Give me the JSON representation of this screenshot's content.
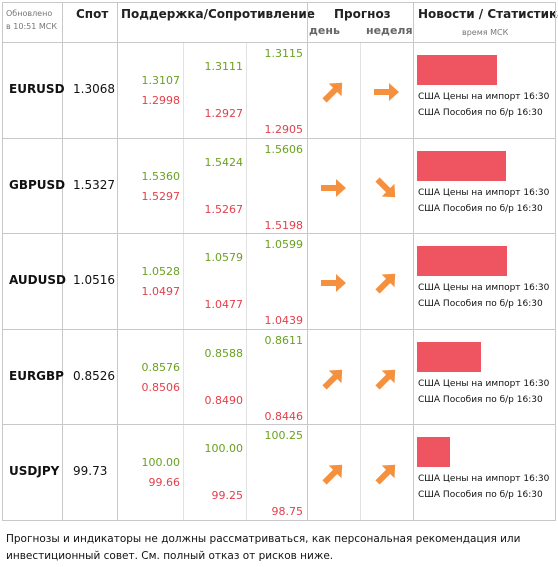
{
  "header": {
    "updated_line1": "Обновлено",
    "updated_line2": "в 10:51 МСК",
    "spot": "Спот",
    "levels": "Поддержка/Сопротивление",
    "forecast": "Прогноз",
    "day": "день",
    "week": "неделя",
    "news": "Новости / Статистика",
    "news_time": "время МСК"
  },
  "rows": [
    {
      "pair": "EURUSD",
      "spot": "1.3068",
      "levels": [
        [
          "1.3107",
          "1.2998"
        ],
        [
          "1.3111",
          "1.2927"
        ],
        [
          "1.3115",
          "1.2905"
        ]
      ],
      "news": [
        "США Цены на импорт 16:30",
        "США Пособия по б/р 16:30"
      ]
    },
    {
      "pair": "GBPUSD",
      "spot": "1.5327",
      "levels": [
        [
          "1.5360",
          "1.5297"
        ],
        [
          "1.5424",
          "1.5267"
        ],
        [
          "1.5606",
          "1.5198"
        ]
      ],
      "news": [
        "США Цены на импорт 16:30",
        "США Пособия по б/р 16:30"
      ]
    },
    {
      "pair": "AUDUSD",
      "spot": "1.0516",
      "levels": [
        [
          "1.0528",
          "1.0497"
        ],
        [
          "1.0579",
          "1.0477"
        ],
        [
          "1.0599",
          "1.0439"
        ]
      ],
      "news": [
        "США Цены на импорт 16:30",
        "США Пособия по б/р 16:30"
      ]
    },
    {
      "pair": "EURGBP",
      "spot": "0.8526",
      "levels": [
        [
          "0.8576",
          "0.8506"
        ],
        [
          "0.8588",
          "0.8490"
        ],
        [
          "0.8611",
          "0.8446"
        ]
      ],
      "news": [
        "США Цены на импорт 16:30",
        "США Пособия по б/р 16:30"
      ]
    },
    {
      "pair": "USDJPY",
      "spot": "99.73",
      "levels": [
        [
          "100.00",
          "99.66"
        ],
        [
          "100.00",
          "99.25"
        ],
        [
          "100.25",
          "98.75"
        ]
      ],
      "news": [
        "США Цены на импорт 16:30",
        "США Пособия по б/р 16:30"
      ]
    }
  ],
  "footer": "Прогнозы и индикаторы не должны рассматриваться, как персональная рекомендация или инвестиционный совет. См. полный отказ от рисков ниже."
}
